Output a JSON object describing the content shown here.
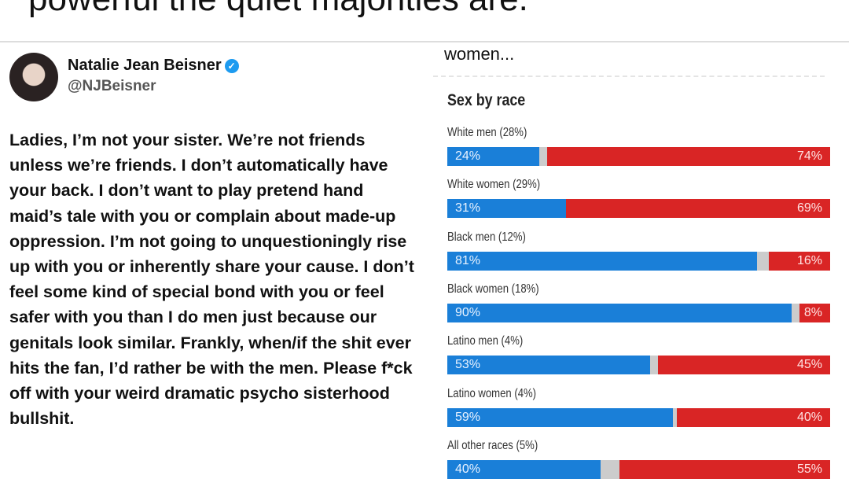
{
  "top_text": "powerful the quiet majorities are.",
  "tweet": {
    "name": "Natalie Jean Beisner",
    "handle": "@NJBeisner",
    "verified_icon": "check-badge-icon",
    "body": "Ladies, I’m not your sister. We’re not friends unless we’re friends. I don’t automatically have your back. I don’t want to play pretend hand maid’s tale with you or complain about made-up oppression. I’m not going to unquestioningly rise up with you or inherently share your cause. I don’t feel some kind of special bond with you or feel safer with you than I do men just because our genitals look similar. Frankly, when/if the shit ever hits the fan, I’d rather be with the men. Please f*ck off with your weird dramatic psycho sisterhood bullshit."
  },
  "chart_header": "women...",
  "chart_data": {
    "type": "bar",
    "title": "Sex by race",
    "colors": {
      "blue": "#1a7fd8",
      "red": "#d92525"
    },
    "categories": [
      "White men (28%)",
      "White women (29%)",
      "Black men (12%)",
      "Black women (18%)",
      "Latino men (4%)",
      "Latino women (4%)",
      "All other races (5%)"
    ],
    "series": [
      {
        "values": [
          24,
          31,
          81,
          90,
          53,
          59,
          40
        ]
      },
      {
        "values": [
          74,
          69,
          16,
          8,
          45,
          40,
          55
        ]
      }
    ],
    "labels_blue": [
      "24%",
      "31%",
      "81%",
      "90%",
      "53%",
      "59%",
      "40%"
    ],
    "labels_red": [
      "74%",
      "69%",
      "16%",
      "8%",
      "45%",
      "40%",
      "55%"
    ]
  }
}
